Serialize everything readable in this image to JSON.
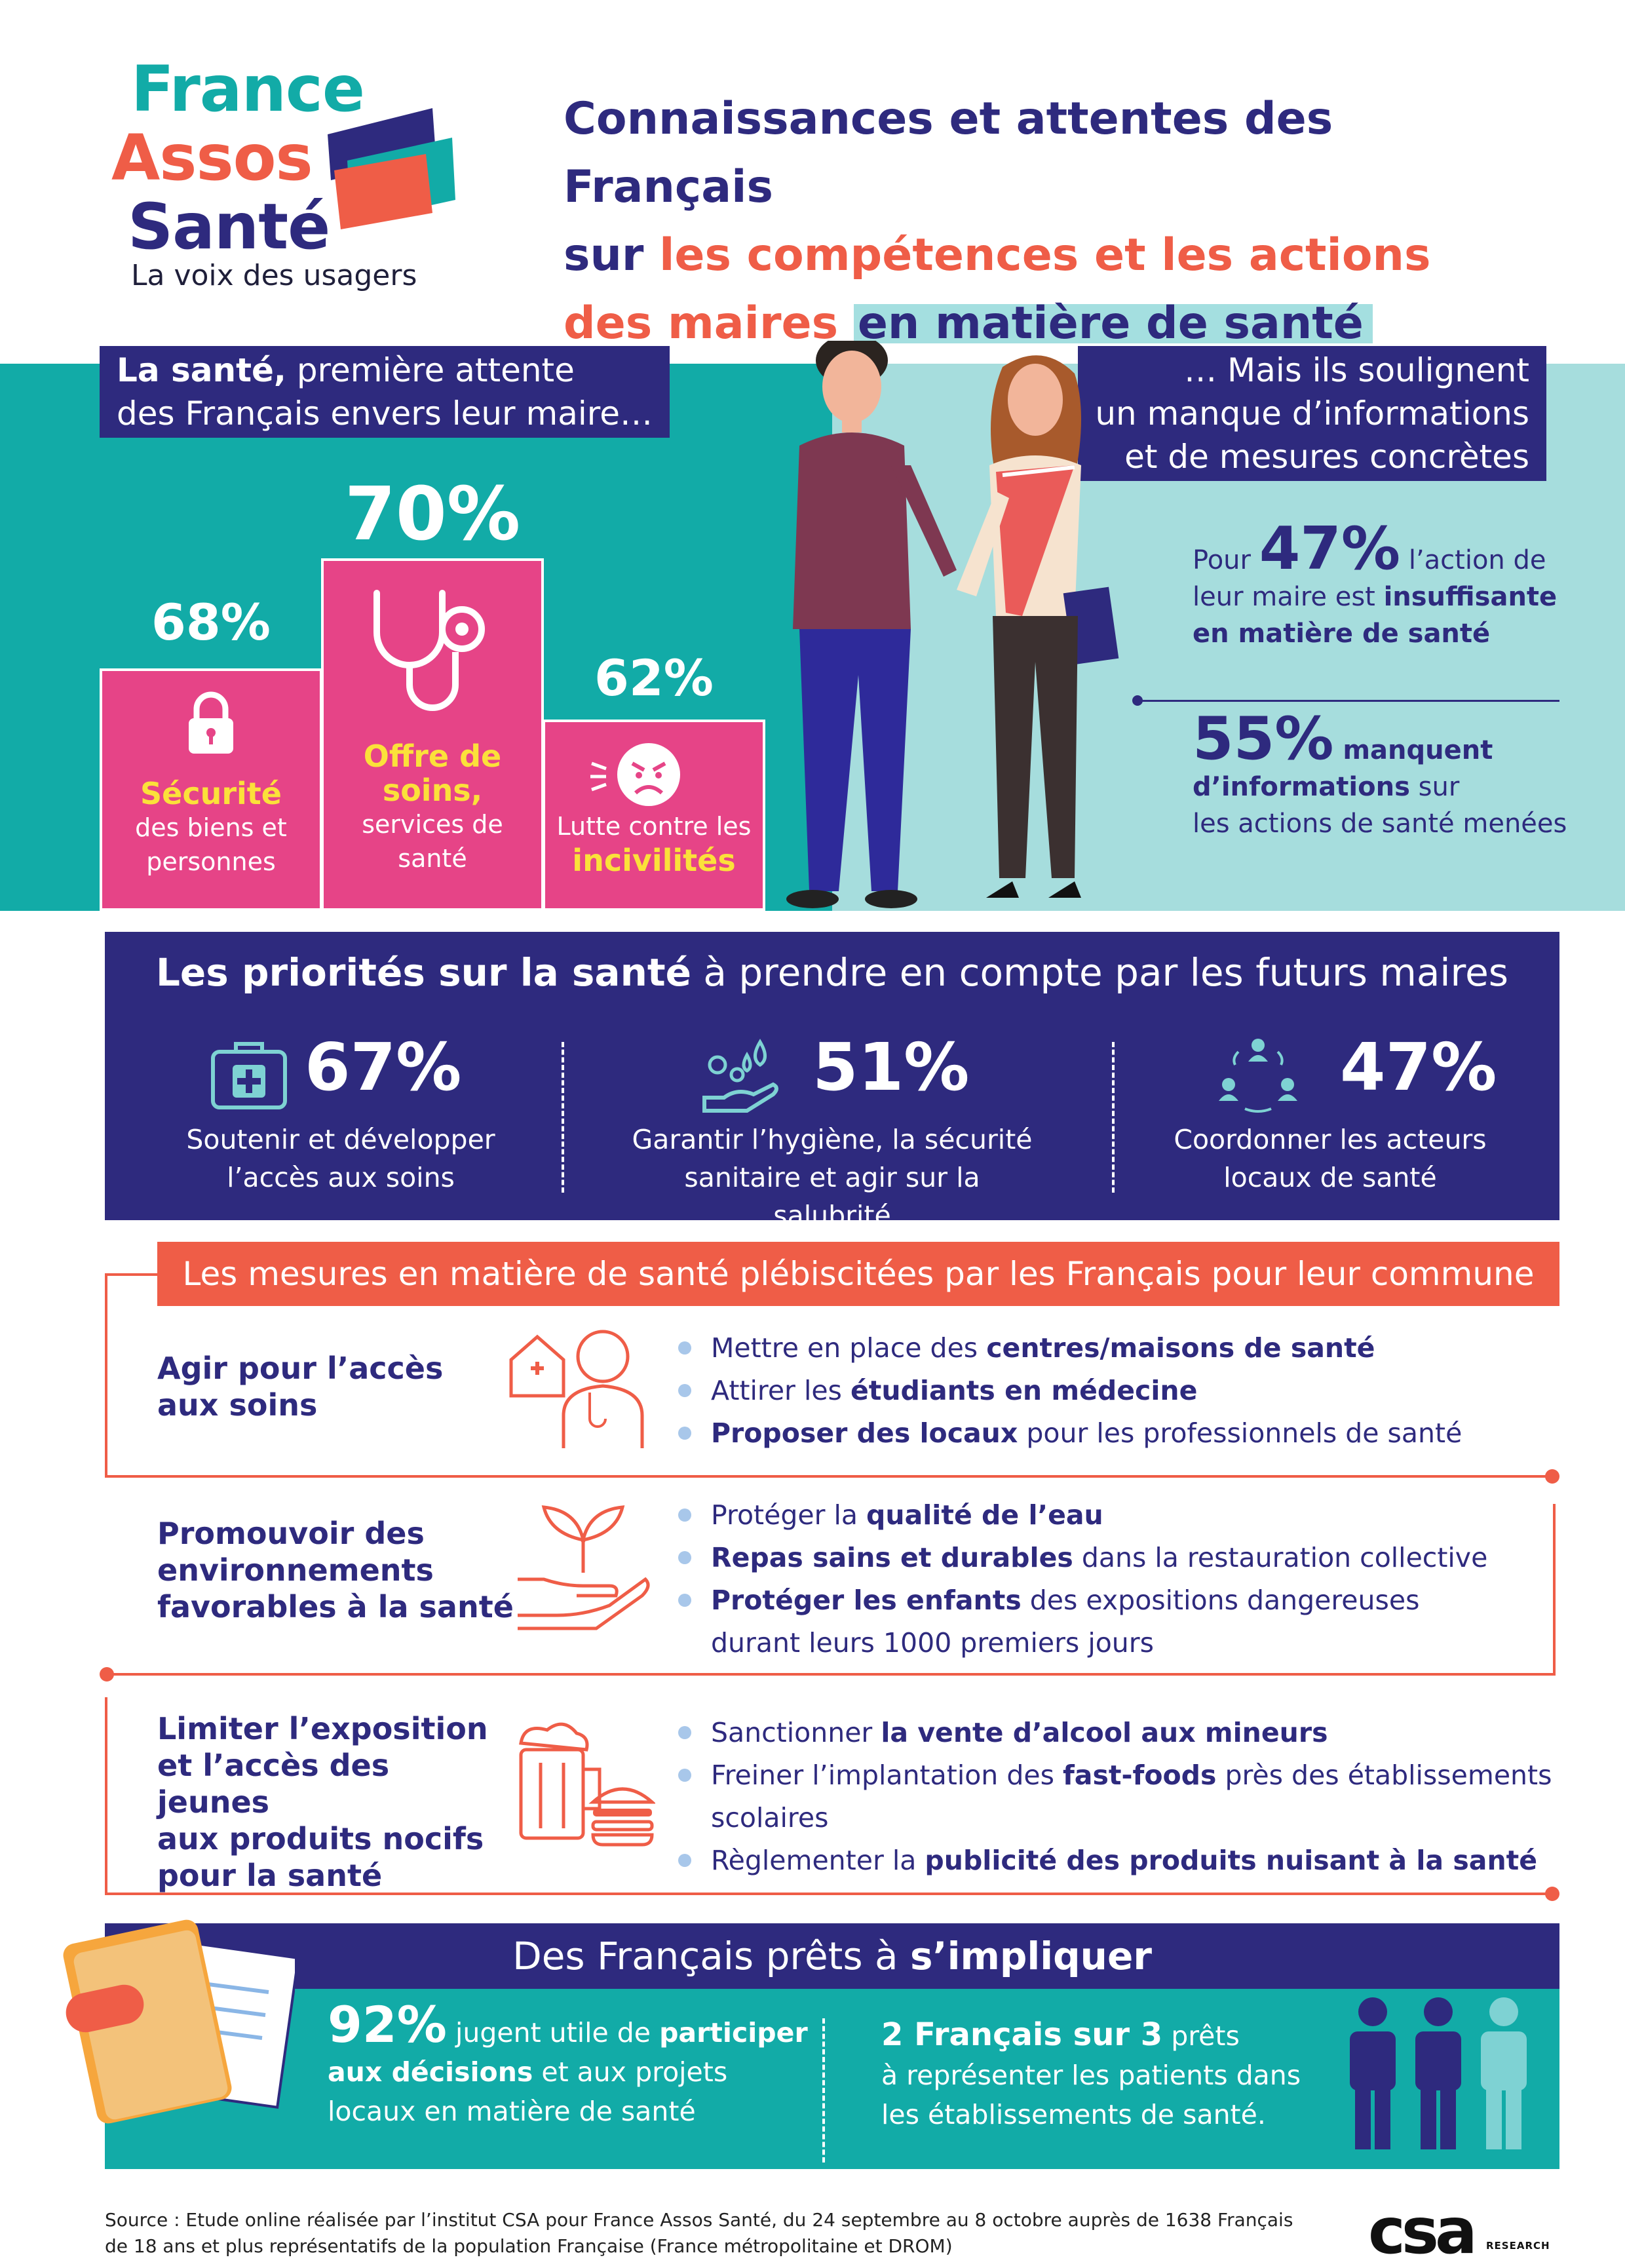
{
  "logo": {
    "line1": "France",
    "line2": "Assos",
    "line3": "Santé",
    "tagline": "La voix des usagers"
  },
  "title": {
    "part1": "Connaissances et attentes des Français",
    "part2_prefix": "sur ",
    "part2_highlight": "les compétences et les actions",
    "part3_highlight": "des maires",
    "part3_suffix": "en matière de santé"
  },
  "section1": {
    "left_tag_bold": "La santé,",
    "left_tag_rest_1": " première attente",
    "left_tag_rest_2": "des Français envers leur maire…",
    "bars": [
      {
        "value": "68%",
        "highlight": "Sécurité",
        "text": "des biens et personnes",
        "icon": "lock-icon"
      },
      {
        "value": "70%",
        "highlight": "Offre de soins,",
        "text": "services de santé",
        "icon": "stethoscope-icon"
      },
      {
        "value": "62%",
        "highlight": "incivilités",
        "text": "Lutte contre les",
        "icon": "angry-face-icon"
      }
    ],
    "right_tag_1": "… Mais ils soulignent",
    "right_tag_2": "un manque d’informations",
    "right_tag_3": "et de mesures concrètes",
    "stat47": {
      "prefix": "Pour ",
      "num": "47%",
      "text1": " l’action de",
      "text2": "leur maire est ",
      "bold2": "insuffisante",
      "bold3": "en matière de santé"
    },
    "stat55": {
      "num": "55%",
      "bold1": " manquent",
      "bold2": "d’informations",
      "text2": " sur",
      "text3": "les actions de santé menées"
    }
  },
  "priorities": {
    "title_bold": "Les priorités sur la santé",
    "title_rest": " à prendre en compte par les futurs maires",
    "items": [
      {
        "value": "67%",
        "line1": "Soutenir et développer",
        "line2": "l’accès aux soins",
        "icon": "medical-kit-icon"
      },
      {
        "value": "51%",
        "line1": "Garantir l’hygiène, la sécurité",
        "line2": "sanitaire et agir sur la salubrité",
        "icon": "hand-water-drops-icon"
      },
      {
        "value": "47%",
        "line1": "Coordonner les acteurs",
        "line2": "locaux de santé",
        "icon": "people-cycle-icon"
      }
    ]
  },
  "mesures": {
    "banner": "Les mesures en matière de santé plébiscitées par les Français pour leur commune",
    "groups": [
      {
        "title_1": "Agir pour l’accès",
        "title_2": "aux soins",
        "icon": "doctor-clinic-icon",
        "items": [
          {
            "a": "Mettre en place des ",
            "b": "centres/maisons de santé",
            "c": ""
          },
          {
            "a": "Attirer les ",
            "b": "étudiants en médecine",
            "c": ""
          },
          {
            "a": "",
            "b": "Proposer des locaux",
            "c": " pour les professionnels de santé"
          }
        ]
      },
      {
        "title_1": "Promouvoir des",
        "title_2": "environnements",
        "title_3": "favorables à la santé",
        "icon": "plant-in-hand-icon",
        "items": [
          {
            "a": "Protéger la ",
            "b": "qualité de l’eau",
            "c": ""
          },
          {
            "a": "",
            "b": "Repas sains et durables",
            "c": " dans la restauration collective"
          },
          {
            "a": "",
            "b": "Protéger les enfants",
            "c": " des expositions dangereuses"
          },
          {
            "a": "durant leurs 1000 premiers jours",
            "b": "",
            "c": ""
          }
        ]
      },
      {
        "title_1": "Limiter l’exposition",
        "title_2": "et l’accès des jeunes",
        "title_3": "aux produits nocifs",
        "title_4": "pour la santé",
        "icon": "beer-burger-icon",
        "items": [
          {
            "a": "Sanctionner ",
            "b": "la vente d’alcool aux mineurs",
            "c": ""
          },
          {
            "a": "Freiner l’implantation des ",
            "b": "fast-foods",
            "c": " près des établissements scolaires"
          },
          {
            "a": "Règlementer la ",
            "b": "publicité des produits nuisant à la santé",
            "c": ""
          }
        ]
      }
    ]
  },
  "implication": {
    "title_prefix": "Des Français prêts à ",
    "title_bold": "s’impliquer",
    "left": {
      "num": "92%",
      "t1": " jugent utile de ",
      "b1": "participer",
      "b2": "aux décisions",
      "t2": " et aux projets",
      "t3": "locaux en matière de santé"
    },
    "right": {
      "bold": "2 Français sur 3",
      "t1": " prêts",
      "t2": "à  représenter les patients dans",
      "t3": "les établissements de santé."
    }
  },
  "footer": {
    "source_1": "Source : Etude online réalisée par l’institut CSA pour France Assos Santé, du 24 septembre au 8 octobre auprès de 1638 Français",
    "source_2": "de 18 ans et plus représentatifs de la population Française (France métropolitaine et DROM)",
    "csa": "csa",
    "csa_sub": "RESEARCH"
  },
  "colors": {
    "navy": "#2e2a7e",
    "teal": "#12aba7",
    "light_teal": "#a6dddd",
    "pink": "#e64487",
    "coral": "#ef5d47",
    "yellow": "#fbe13a"
  }
}
